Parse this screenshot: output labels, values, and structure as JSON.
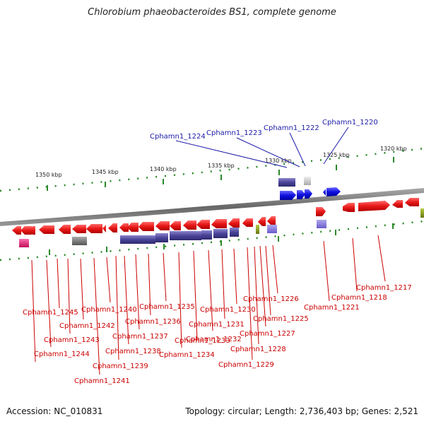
{
  "title": "Chlorobium phaeobacteroides BS1, complete genome",
  "footer": {
    "accession": "Accession: NC_010831",
    "summary": "Topology: circular; Length: 2,736,403 bp; Genes: 2,521"
  },
  "colors": {
    "forward_red": "#e81818",
    "reverse_blue": "#1010e0",
    "rna_purple": "#4a4499",
    "grey": "#777777",
    "pink": "#e0207a",
    "olive": "#889922",
    "scale_green": "#2a8a2a",
    "blue_label": "#1a1aa8",
    "red_label": "#cc0000"
  },
  "scale_labels": [
    "1350 kbp",
    "1345 kbp",
    "1340 kbp",
    "1335 kbp",
    "1330 kbp",
    "1325 kbp",
    "1320 kbp"
  ],
  "top_labels": [
    "Cphamn1_1224",
    "Cphamn1_1223",
    "Cphamn1_1222",
    "Cphamn1_1220"
  ],
  "bottom_labels": [
    "Cphamn1_1217",
    "Cphamn1_1218",
    "Cphamn1_1221",
    "Cphamn1_1226",
    "Cphamn1_1225",
    "Cphamn1_1227",
    "Cphamn1_1228",
    "Cphamn1_1229",
    "Cphamn1_1230",
    "Cphamn1_1231",
    "Cphamn1_1232",
    "Cphamn1_1233",
    "Cphamn1_1234",
    "Cphamn1_1235",
    "Cphamn1_1236",
    "Cphamn1_1237",
    "Cphamn1_1238",
    "Cphamn1_1239",
    "Cphamn1_1240",
    "Cphamn1_1241",
    "Cphamn1_1242",
    "Cphamn1_1243",
    "Cphamn1_1244",
    "Cphamn1_1245"
  ]
}
